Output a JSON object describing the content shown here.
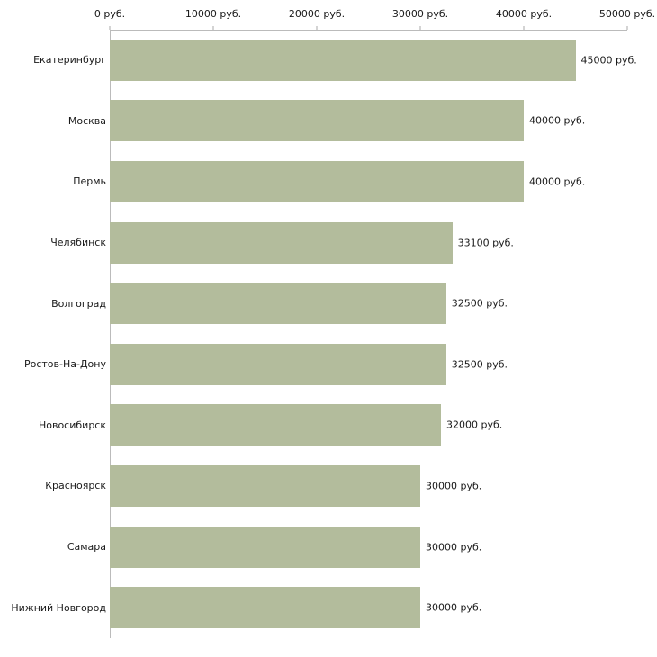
{
  "chart_data": {
    "type": "bar",
    "orientation": "horizontal",
    "title": "",
    "categories": [
      "Екатеринбург",
      "Москва",
      "Пермь",
      "Челябинск",
      "Волгоград",
      "Ростов-На-Дону",
      "Новосибирск",
      "Красноярск",
      "Самара",
      "Нижний Новгород"
    ],
    "values": [
      45000,
      40000,
      40000,
      33100,
      32500,
      32500,
      32000,
      30000,
      30000,
      30000
    ],
    "value_labels": [
      "45000 руб.",
      "40000 руб.",
      "40000 руб.",
      "33100 руб.",
      "32500 руб.",
      "32500 руб.",
      "32000 руб.",
      "30000 руб.",
      "30000 руб.",
      "30000 руб."
    ],
    "x_ticks": [
      "0 руб.",
      "10000 руб.",
      "20000 руб.",
      "30000 руб.",
      "40000 руб.",
      "50000 руб."
    ],
    "xlim": [
      0,
      50000
    ],
    "grid": false,
    "legend": false,
    "axis_position": "top"
  },
  "colors": {
    "bar": "#b3bc9c",
    "axis": "#bbbbbb",
    "text": "#1a1a1a",
    "background": "#ffffff"
  }
}
